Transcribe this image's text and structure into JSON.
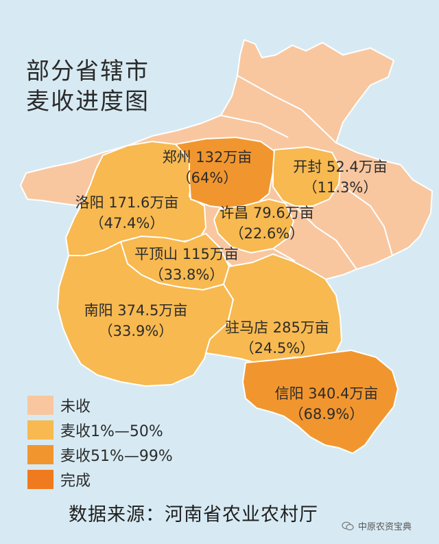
{
  "title_line1": "部分省辖市",
  "title_line2": "麦收进度图",
  "colors": {
    "background": "#d7eaf3",
    "not_harvested": "#f8c7a0",
    "progress_1_50": "#f7b950",
    "progress_51_99": "#f1962e",
    "complete": "#f07a1e",
    "border": "#ffffff"
  },
  "regions": [
    {
      "name": "郑州",
      "area": "132万亩",
      "pct": "（64%）",
      "status": "progress_51_99"
    },
    {
      "name": "开封",
      "area": "52.4万亩",
      "pct": "（11.3%）",
      "status": "progress_1_50"
    },
    {
      "name": "洛阳",
      "area": "171.6万亩",
      "pct": "（47.4%）",
      "status": "progress_1_50"
    },
    {
      "name": "许昌",
      "area": "79.6万亩",
      "pct": "（22.6%）",
      "status": "progress_1_50"
    },
    {
      "name": "平顶山",
      "area": "115万亩",
      "pct": "（33.8%）",
      "status": "progress_1_50"
    },
    {
      "name": "南阳",
      "area": "374.5万亩",
      "pct": "（33.9%）",
      "status": "progress_1_50"
    },
    {
      "name": "驻马店",
      "area": "285万亩",
      "pct": "（24.5%）",
      "status": "progress_1_50"
    },
    {
      "name": "信阳",
      "area": "340.4万亩",
      "pct": "（68.9%）",
      "status": "progress_51_99"
    }
  ],
  "legend": [
    {
      "label": "未收",
      "color": "#f8c7a0"
    },
    {
      "label": "麦收1%—50%",
      "color": "#f7b950"
    },
    {
      "label": "麦收51%—99%",
      "color": "#f1962e"
    },
    {
      "label": "完成",
      "color": "#f07a1e"
    }
  ],
  "source": "数据来源：河南省农业农村厅",
  "watermark": "中原农资宝典"
}
